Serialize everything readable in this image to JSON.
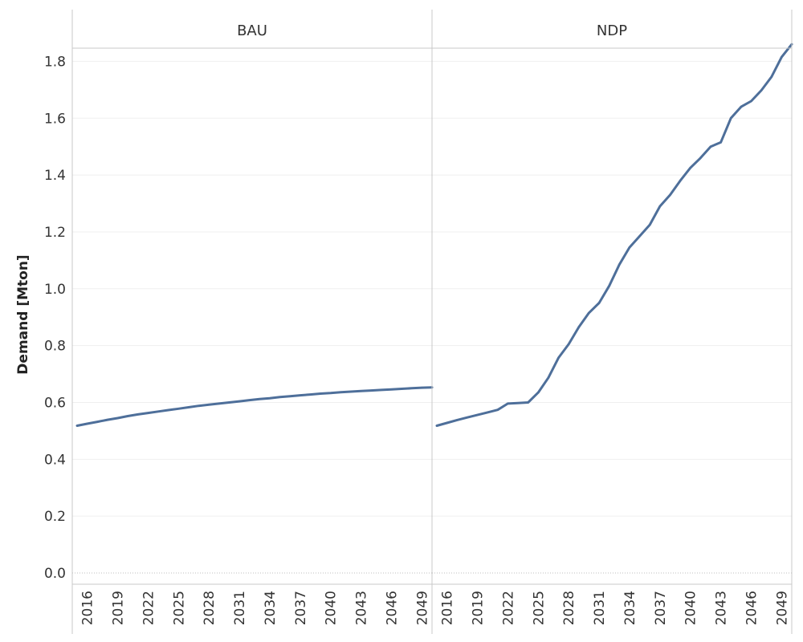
{
  "chart_data": {
    "type": "line",
    "ylabel": "Demand [Mton]",
    "ylim": [
      0,
      1.9
    ],
    "yticks": [
      "0.0",
      "0.2",
      "0.4",
      "0.6",
      "0.8",
      "1.0",
      "1.2",
      "1.4",
      "1.6",
      "1.8"
    ],
    "ytick_values": [
      0,
      0.2,
      0.4,
      0.6,
      0.8,
      1.0,
      1.2,
      1.4,
      1.6,
      1.8
    ],
    "xlim": [
      2015,
      2050
    ],
    "xticks": [
      2016,
      2019,
      2022,
      2025,
      2028,
      2031,
      2034,
      2037,
      2040,
      2043,
      2046,
      2049
    ],
    "grid": true,
    "line_color": "#4e6f9a",
    "panels": [
      {
        "title": "BAU",
        "x": [
          2015,
          2016,
          2017,
          2018,
          2019,
          2020,
          2021,
          2022,
          2023,
          2024,
          2025,
          2026,
          2027,
          2028,
          2029,
          2030,
          2031,
          2032,
          2033,
          2034,
          2035,
          2036,
          2037,
          2038,
          2039,
          2040,
          2041,
          2042,
          2043,
          2044,
          2045,
          2046,
          2047,
          2048,
          2049,
          2050
        ],
        "y": [
          0.518,
          0.525,
          0.532,
          0.539,
          0.545,
          0.552,
          0.558,
          0.563,
          0.568,
          0.573,
          0.578,
          0.583,
          0.588,
          0.592,
          0.596,
          0.6,
          0.604,
          0.608,
          0.612,
          0.615,
          0.619,
          0.622,
          0.625,
          0.628,
          0.631,
          0.633,
          0.636,
          0.638,
          0.64,
          0.642,
          0.644,
          0.646,
          0.648,
          0.65,
          0.652,
          0.653
        ]
      },
      {
        "title": "NDP",
        "x": [
          2015,
          2016,
          2017,
          2018,
          2019,
          2020,
          2021,
          2022,
          2023,
          2024,
          2025,
          2026,
          2027,
          2028,
          2029,
          2030,
          2031,
          2032,
          2033,
          2034,
          2035,
          2036,
          2037,
          2038,
          2039,
          2040,
          2041,
          2042,
          2043,
          2044,
          2045,
          2046,
          2047,
          2048,
          2049,
          2050
        ],
        "y": [
          0.518,
          0.528,
          0.538,
          0.547,
          0.556,
          0.565,
          0.574,
          0.596,
          0.598,
          0.6,
          0.635,
          0.687,
          0.757,
          0.805,
          0.865,
          0.915,
          0.95,
          1.01,
          1.085,
          1.145,
          1.185,
          1.225,
          1.29,
          1.33,
          1.38,
          1.425,
          1.46,
          1.5,
          1.515,
          1.6,
          1.64,
          1.66,
          1.698,
          1.745,
          1.815,
          1.86
        ]
      }
    ]
  }
}
